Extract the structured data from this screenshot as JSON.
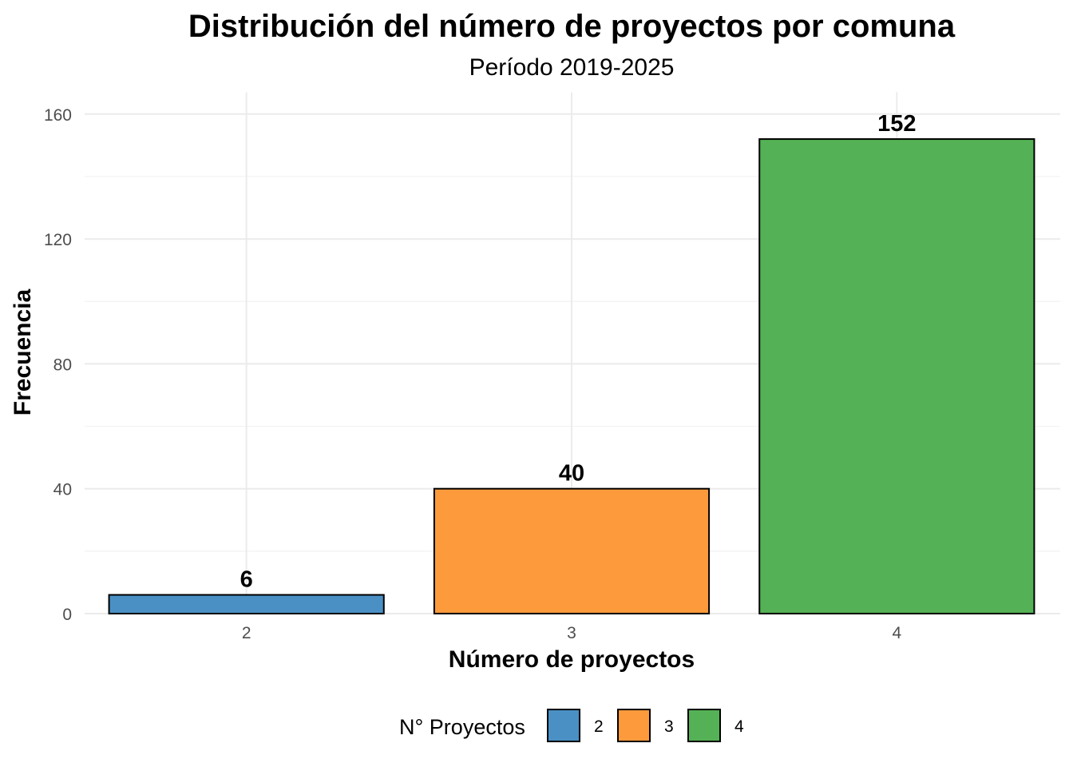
{
  "chart_data": {
    "type": "bar",
    "title": "Distribución del número de proyectos por comuna",
    "subtitle": "Período 2019-2025",
    "xlabel": "Número de proyectos",
    "ylabel": "Frecuencia",
    "categories": [
      "2",
      "3",
      "4"
    ],
    "values": [
      6,
      40,
      152
    ],
    "data_labels": [
      "6",
      "40",
      "152"
    ],
    "colors": [
      "#4a90c4",
      "#fd9a3c",
      "#55b155"
    ],
    "ylim": [
      0,
      167
    ],
    "y_ticks": [
      0,
      40,
      80,
      120,
      160
    ],
    "y_minor_ticks": [
      20,
      60,
      100,
      140
    ],
    "grid": true,
    "legend": {
      "title": "N° Proyectos",
      "position": "bottom",
      "entries": [
        "2",
        "3",
        "4"
      ]
    }
  }
}
